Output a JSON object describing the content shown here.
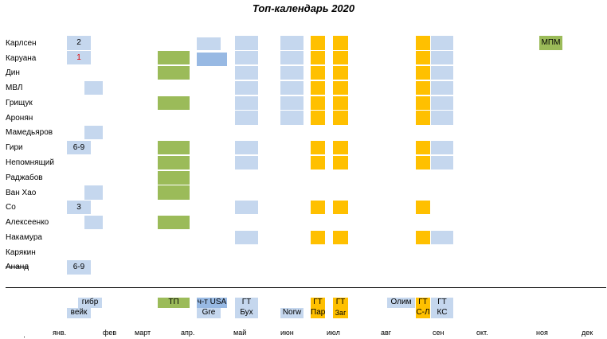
{
  "title": "Топ-календарь 2020",
  "players": [
    "Карлсен",
    "Каруана",
    "Дин",
    "МВЛ",
    "Грищук",
    "Аронян",
    "Мамедьяров",
    "Гири",
    "Непомнящий",
    "Раджабов",
    "Ван Хао",
    "Со",
    "Алексеенко",
    "Накамура",
    "Карякин",
    "Ананд"
  ],
  "cells": {
    "carlsen_jan": "2",
    "caruana_jan": "1",
    "giri_jan": "6-9",
    "so_jan": "3",
    "anand_jan": "6-9",
    "mpm": "МПМ"
  },
  "legend": {
    "gibr": "гибр",
    "veik": "вейк",
    "tp": "ТП",
    "chtusa": "ч-т USA",
    "gre": "Gre",
    "gt_may": "ГТ",
    "bukh": "Бух",
    "norw": "Norw",
    "gt_par1": "ГТ",
    "gt_par2": "Пар",
    "gt_zag1": "ГТ",
    "gt_zag2": "Заг",
    "olim": "Олим",
    "gt_sl1": "ГТ",
    "gt_sl2": "С-Л",
    "gt_ks1": "ГТ",
    "gt_ks2": "КС"
  },
  "months": [
    "янв.",
    "фев",
    "март",
    "апр.",
    "май",
    "июн",
    "июл",
    "авг",
    "сен",
    "окт.",
    "ноя",
    "дек"
  ],
  "colors": {
    "blue": "#c5d7ee",
    "darkblue": "#98b9e3",
    "green": "#9bbb59",
    "orange": "#ffc000"
  }
}
